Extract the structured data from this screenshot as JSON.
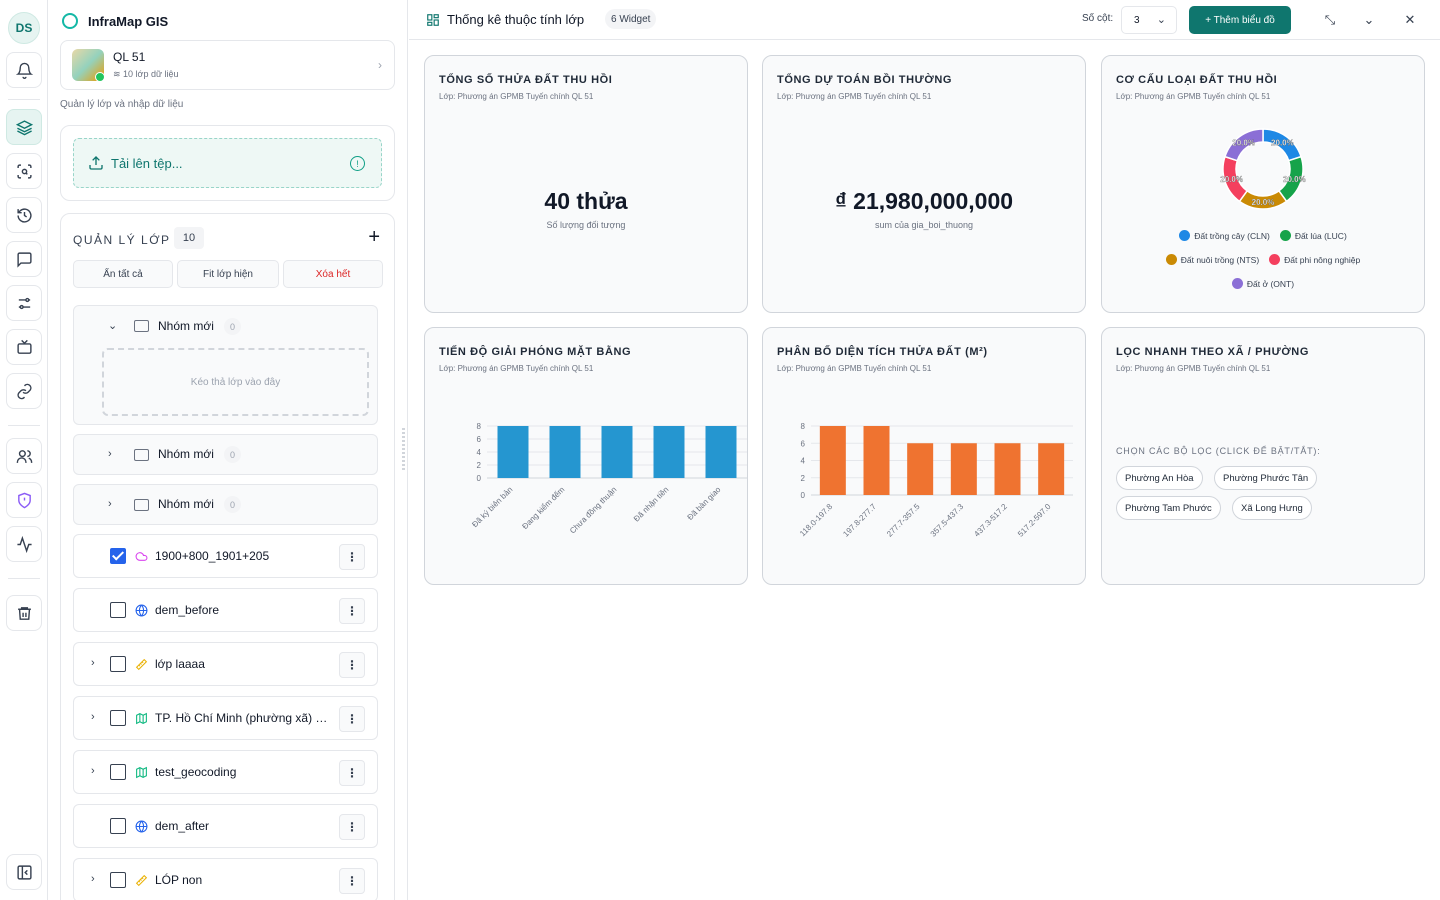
{
  "user": {
    "initials": "DS"
  },
  "app": {
    "title": "InfraMap GIS"
  },
  "project": {
    "name": "QL 51",
    "layers": "10 lớp dữ liệu"
  },
  "panel": {
    "caption": "Quản lý lớp và nhập dữ liệu",
    "upload_label": "Tải lên tệp...",
    "layer_manager_title": "QUẢN LÝ LỚP",
    "layer_count": "10",
    "hide_all": "Ẩn tất cả",
    "fit_visible": "Fit lớp hiện",
    "clear_all": "Xóa hết",
    "dropzone": "Kéo thả lớp vào đây",
    "groups": [
      {
        "name": "Nhóm mới",
        "count": "0",
        "expanded": true
      },
      {
        "name": "Nhóm mới",
        "count": "0",
        "expanded": false
      },
      {
        "name": "Nhóm mới",
        "count": "0",
        "expanded": false
      }
    ],
    "layers": [
      {
        "name": "1900+800_1901+205",
        "checked": true,
        "icon": "cloud-icon",
        "expandable": false
      },
      {
        "name": "dem_before",
        "checked": false,
        "icon": "globe-icon",
        "expandable": false
      },
      {
        "name": "lớp laaaa",
        "checked": false,
        "icon": "ruler-icon",
        "expandable": true
      },
      {
        "name": "TP. Hồ Chí Minh (phường xã) - Đơn vị hành chính",
        "checked": false,
        "icon": "map-icon",
        "expandable": true
      },
      {
        "name": "test_geocoding",
        "checked": false,
        "icon": "map-icon",
        "expandable": true
      },
      {
        "name": "dem_after",
        "checked": false,
        "icon": "globe-icon",
        "expandable": false
      },
      {
        "name": "LÓP non",
        "checked": false,
        "icon": "ruler-icon",
        "expandable": true
      }
    ]
  },
  "dashboard": {
    "title": "Thống kê thuộc tính lớp",
    "widget_badge": "6 Widget",
    "columns_label": "Số cột:",
    "columns_value": "3",
    "add_chart": "+ Thêm biểu đồ"
  },
  "widgets": {
    "w1": {
      "title": "TỔNG SỐ THỬA ĐẤT THU HỒI",
      "subtitle": "Lớp: Phương án GPMB Tuyến chính QL 51",
      "value": "40 thửa",
      "caption": "Số lượng đối tượng"
    },
    "w2": {
      "title": "TỔNG DỰ TOÁN BỒI THƯỜNG",
      "subtitle": "Lớp: Phương án GPMB Tuyến chính QL 51",
      "value": "₫ 21,980,000,000",
      "caption": "sum của gia_boi_thuong"
    },
    "w3": {
      "title": "CƠ CẤU LOẠI ĐẤT THU HỒI",
      "subtitle": "Lớp: Phương án GPMB Tuyến chính QL 51"
    },
    "w4": {
      "title": "TIẾN ĐỘ GIẢI PHÓNG MẶT BẰNG",
      "subtitle": "Lớp: Phương án GPMB Tuyến chính QL 51"
    },
    "w5": {
      "title": "PHÂN BỐ DIỆN TÍCH THỬA ĐẤT (M²)",
      "subtitle": "Lớp: Phương án GPMB Tuyến chính QL 51"
    },
    "w6": {
      "title": "LỌC NHANH THEO XÃ / PHƯỜNG",
      "subtitle": "Lớp: Phương án GPMB Tuyến chính QL 51",
      "filter_caption": "CHỌN CÁC BỘ LỌC (CLICK ĐỂ BẬT/TẮT):",
      "chips": [
        "Phường An Hòa",
        "Phường Phước Tân",
        "Phường Tam Phước",
        "Xã Long Hưng"
      ]
    }
  },
  "chart_data": [
    {
      "type": "pie",
      "donut": true,
      "categories": [
        "Đất trồng cây (CLN)",
        "Đất lúa (LUC)",
        "Đất nuôi trồng (NTS)",
        "Đất phi nông nghiệp",
        "Đất ở (ONT)"
      ],
      "values": [
        20.0,
        20.0,
        20.0,
        20.0,
        20.0
      ],
      "labels": [
        "20.0%",
        "20.0%",
        "20.0%",
        "20.0%",
        "20.0%"
      ],
      "colors": [
        "#1e88e5",
        "#16a34a",
        "#ca8a04",
        "#f43f5e",
        "#8b6fd6"
      ]
    },
    {
      "type": "bar",
      "categories": [
        "Đã ký biên bản",
        "Đang kiểm đếm",
        "Chưa đồng thuận",
        "Đã nhận tiền",
        "Đã bàn giao"
      ],
      "values": [
        8,
        8,
        8,
        8,
        8
      ],
      "yticks": [
        "0",
        "2",
        "4",
        "6",
        "8"
      ],
      "ylim": [
        0,
        8
      ],
      "color": "#2596d0"
    },
    {
      "type": "bar",
      "categories": [
        "118.0-197.8",
        "197.8-277.7",
        "277.7-357.5",
        "357.5-437.3",
        "437.3-517.2",
        "517.2-597.0"
      ],
      "values": [
        8,
        8,
        6,
        6,
        6,
        6
      ],
      "yticks": [
        "0",
        "2",
        "4",
        "6",
        "8"
      ],
      "ylim": [
        0,
        8
      ],
      "color": "#ef7330"
    }
  ]
}
